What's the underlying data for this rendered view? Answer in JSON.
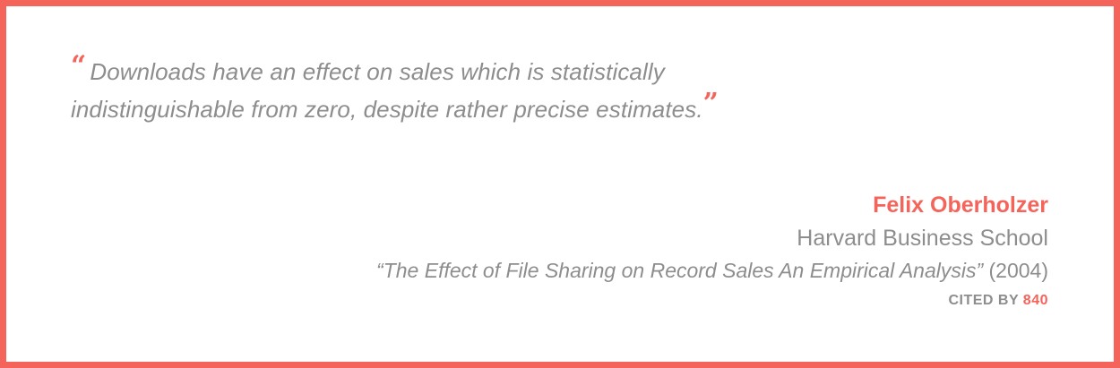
{
  "quote": {
    "open_mark": "“",
    "text": "Downloads have an effect on sales which is statistically indistinguishable from zero, despite rather precise estimates.",
    "close_mark": "”"
  },
  "attribution": {
    "author": "Felix Oberholzer",
    "institution": "Harvard Business School",
    "paper_title": "“The Effect of File Sharing on Record Sales An Empirical Analysis”",
    "year": "(2004)",
    "cited_label": "CITED BY",
    "cited_count": "840"
  },
  "colors": {
    "accent": "#f4645a",
    "text": "#8d8d8d",
    "background": "#ffffff"
  }
}
